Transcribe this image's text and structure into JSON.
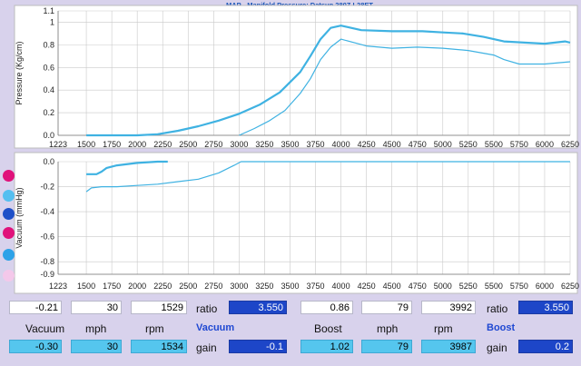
{
  "chart_data": [
    {
      "type": "line",
      "title": "MAP - Manifold Pressure: Datsun 280Z L28ET",
      "ylabel": "Pressure (Kg/cm)",
      "xlim": [
        1223,
        6250
      ],
      "ylim": [
        0,
        1.1
      ],
      "x_ticks": [
        "1223",
        "1500",
        "1750",
        "2000",
        "2250",
        "2500",
        "2750",
        "3000",
        "3250",
        "3500",
        "3750",
        "4000",
        "4250",
        "4500",
        "4750",
        "5000",
        "5250",
        "5500",
        "5750",
        "6000",
        "6250"
      ],
      "y_ticks": [
        "0.0",
        "0.2",
        "0.4",
        "0.6",
        "0.8",
        "1",
        "1.1"
      ],
      "grid": true,
      "series": [
        {
          "color": "#3fb2e2",
          "width": 2.2,
          "x": [
            1500,
            2000,
            2200,
            2400,
            2600,
            2800,
            3000,
            3200,
            3400,
            3600,
            3700,
            3800,
            3900,
            4000,
            4200,
            4500,
            4800,
            5000,
            5200,
            5400,
            5600,
            5800,
            6000,
            6200,
            6250
          ],
          "y": [
            0,
            0,
            0.01,
            0.04,
            0.08,
            0.13,
            0.19,
            0.27,
            0.38,
            0.56,
            0.7,
            0.85,
            0.95,
            0.97,
            0.93,
            0.92,
            0.92,
            0.91,
            0.9,
            0.87,
            0.83,
            0.82,
            0.81,
            0.83,
            0.82
          ]
        },
        {
          "color": "#3fb2e2",
          "width": 1.2,
          "x": [
            3000,
            3150,
            3300,
            3450,
            3600,
            3700,
            3800,
            3900,
            4000,
            4250,
            4500,
            4750,
            5000,
            5250,
            5500,
            5600,
            5750,
            6000,
            6250
          ],
          "y": [
            0,
            0.06,
            0.13,
            0.22,
            0.37,
            0.5,
            0.67,
            0.78,
            0.85,
            0.79,
            0.77,
            0.78,
            0.77,
            0.75,
            0.71,
            0.67,
            0.63,
            0.63,
            0.65
          ]
        }
      ]
    },
    {
      "type": "line",
      "ylabel": "Vacuum (mmHg)",
      "xlim": [
        1223,
        6250
      ],
      "ylim": [
        -0.9,
        0
      ],
      "x_ticks": [
        "1223",
        "1500",
        "1750",
        "2000",
        "2250",
        "2500",
        "2750",
        "3000",
        "3250",
        "3500",
        "3750",
        "4000",
        "4250",
        "4500",
        "4750",
        "5000",
        "5250",
        "5500",
        "5750",
        "6000",
        "6250"
      ],
      "y_ticks": [
        "0.0",
        "-0.2",
        "-0.4",
        "-0.6",
        "-0.8",
        "-0.9"
      ],
      "grid": true,
      "series": [
        {
          "color": "#3fb2e2",
          "width": 2.2,
          "x": [
            1500,
            1600,
            1650,
            1700,
            1800,
            2000,
            2200,
            2300
          ],
          "y": [
            -0.1,
            -0.1,
            -0.08,
            -0.05,
            -0.03,
            -0.01,
            0,
            0
          ]
        },
        {
          "color": "#3fb2e2",
          "width": 1.2,
          "x": [
            1500,
            1550,
            1650,
            1800,
            2000,
            2200,
            2400,
            2600,
            2800,
            2950,
            3020,
            6250
          ],
          "y": [
            -0.24,
            -0.21,
            -0.2,
            -0.2,
            -0.19,
            -0.18,
            -0.16,
            -0.14,
            -0.09,
            -0.03,
            0,
            0
          ]
        }
      ]
    }
  ],
  "readouts": {
    "row1": {
      "vacuum_value": "-0.21",
      "vacuum_mph": "30",
      "vacuum_rpm": "1529",
      "ratio_label": "ratio",
      "ratio_value": "3.550",
      "boost_value": "0.86",
      "boost_mph": "79",
      "boost_rpm": "3992",
      "ratio2_label": "ratio",
      "ratio2_value": "3.550"
    },
    "row2_labels": {
      "vacuum": "Vacuum",
      "mph": "mph",
      "rpm": "rpm",
      "vacuum_title": "Vacuum",
      "boost": "Boost",
      "mph2": "mph",
      "rpm2": "rpm",
      "boost_title": "Boost"
    },
    "row3": {
      "vacuum_value": "-0.30",
      "vacuum_mph": "30",
      "vacuum_rpm": "1534",
      "gain_label": "gain",
      "gain_value": "-0.1",
      "boost_value": "1.02",
      "boost_mph": "79",
      "boost_rpm": "3987",
      "gain2_label": "gain",
      "gain2_value": "0.2"
    }
  },
  "side_dots": {
    "colors": [
      "#e0127a",
      "#55bff0",
      "#1f50c8",
      "#e0127a",
      "#2da2e8",
      "#f4c8ea"
    ],
    "icons": [
      "magenta-dot-icon",
      "cyan-dot-icon",
      "blue-dot-icon",
      "magenta-dot-icon",
      "cyan-dot-icon",
      "pink-dot-icon"
    ]
  },
  "colors": {
    "series": "#3fb2e2",
    "grid": "#c9c9c9",
    "navy_field": "#1d46c8",
    "cyan_field": "#55c6ee"
  }
}
